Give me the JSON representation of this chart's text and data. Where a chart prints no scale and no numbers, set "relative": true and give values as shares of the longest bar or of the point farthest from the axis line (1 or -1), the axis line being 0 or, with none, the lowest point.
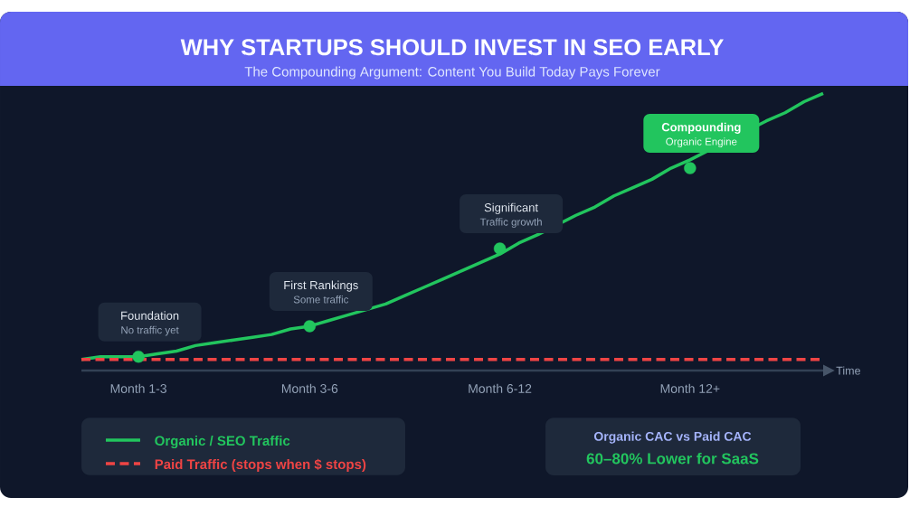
{
  "chart_data": {
    "type": "line",
    "title": "WHY STARTUPS SHOULD INVEST IN SEO EARLY",
    "subtitle": "The Compounding Argument: Content You Build Today Pays Forever",
    "xlabel": "Time",
    "relative": true,
    "categories": [
      null,
      null,
      null,
      "Month 1-3",
      null,
      null,
      null,
      null,
      null,
      null,
      null,
      null,
      "Month 3-6",
      null,
      null,
      null,
      null,
      null,
      null,
      null,
      null,
      null,
      "Month 6-12",
      null,
      null,
      null,
      null,
      null,
      null,
      null,
      null,
      null,
      "Month 12+",
      null,
      null,
      null,
      null,
      null,
      null,
      null
    ],
    "tick_labels": "x",
    "legend": "bottom",
    "series": [
      {
        "name": "Organic / SEO Traffic",
        "color": "#22c55e",
        "values": [
          0.04,
          0.05,
          0.05,
          0.05,
          0.06,
          0.07,
          0.09,
          0.1,
          0.11,
          0.12,
          0.13,
          0.15,
          0.16,
          0.18,
          0.2,
          null,
          0.24,
          0.27,
          0.3,
          0.33,
          0.36,
          0.39,
          0.42,
          0.46,
          0.49,
          null,
          0.56,
          0.59,
          0.63,
          0.66,
          0.69,
          0.73,
          0.76,
          null,
          null,
          null,
          0.9,
          0.93,
          0.97,
          1
        ]
      },
      {
        "name": "Paid Traffic (stops when $ stops)",
        "color": "#ef4444",
        "line_style": "dashed",
        "values": [
          0.04,
          0.04,
          0.04,
          0.04,
          0.04,
          0.04,
          0.04,
          0.04,
          0.04,
          0.04,
          0.04,
          0.04,
          0.04,
          0.04,
          0.04,
          0.04,
          0.04,
          0.04,
          0.04,
          0.04,
          0.04,
          0.04,
          0.04,
          0.04,
          0.04,
          0.04,
          0.04,
          0.04,
          0.04,
          0.04,
          0.04,
          0.04,
          0.04,
          0.04,
          0.04,
          0.04,
          0.04,
          0.04,
          0.04,
          0.04
        ]
      },
      {
        "type": "scatter",
        "color": "#22c55e",
        "marker": "circle",
        "values": [
          null,
          null,
          null,
          0.05,
          null,
          null,
          null,
          null,
          null,
          null,
          null,
          null,
          0.16,
          null,
          null,
          null,
          null,
          null,
          null,
          null,
          null,
          null,
          0.44,
          null,
          null,
          null,
          null,
          null,
          null,
          null,
          null,
          null,
          0.73,
          null,
          null,
          null,
          null,
          null,
          null,
          null
        ]
      }
    ],
    "annotations": [
      "Foundation",
      "No traffic yet",
      "First Rankings",
      "Some traffic",
      "Significant",
      "Traffic growth",
      "Compounding",
      "Organic Engine",
      "Organic CAC vs Paid CAC",
      "60–80% Lower for SaaS"
    ]
  }
}
